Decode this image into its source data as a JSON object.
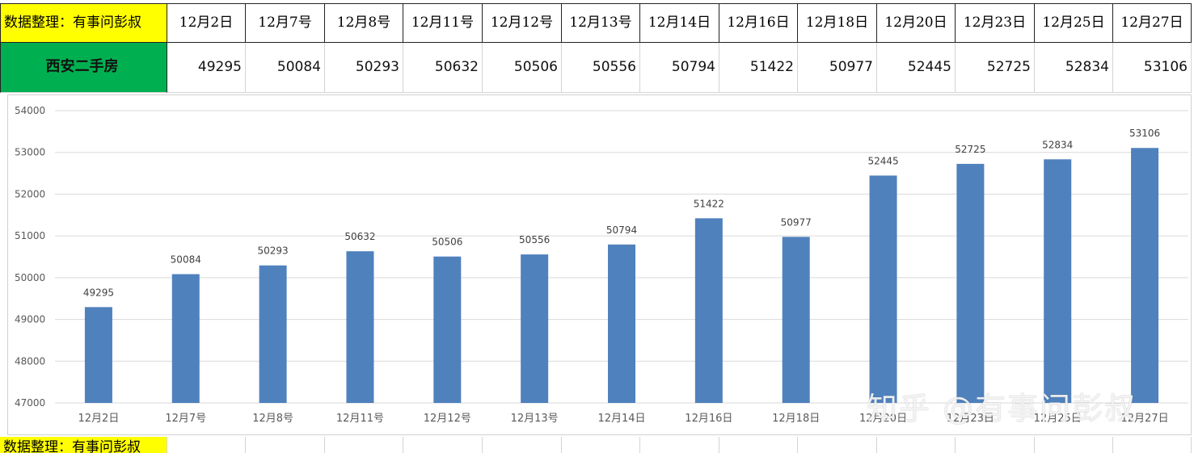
{
  "sheet": {
    "source_label": "数据整理：有事问彭叔",
    "row_label": "西安二手房",
    "footer_label": "数据整理：有事问彭叔",
    "dates": [
      "12月2日",
      "12月7号",
      "12月8号",
      "12月11号",
      "12月12号",
      "12月13号",
      "12月14日",
      "12月16日",
      "12月18日",
      "12月20日",
      "12月23日",
      "12月25日",
      "12月27日"
    ],
    "values": [
      "49295",
      "50084",
      "50293",
      "50632",
      "50506",
      "50556",
      "50794",
      "51422",
      "50977",
      "52445",
      "52725",
      "52834",
      "53106"
    ]
  },
  "chart_data": {
    "type": "bar",
    "categories": [
      "12月2日",
      "12月7号",
      "12月8号",
      "12月11号",
      "12月12号",
      "12月13号",
      "12月14日",
      "12月16日",
      "12月18日",
      "12月20日",
      "12月23日",
      "12月25日",
      "12月27日"
    ],
    "values": [
      49295,
      50084,
      50293,
      50632,
      50506,
      50556,
      50794,
      51422,
      50977,
      52445,
      52725,
      52834,
      53106
    ],
    "data_labels": [
      "49295",
      "50084",
      "50293",
      "50632",
      "50506",
      "50556",
      "50794",
      "51422",
      "50977",
      "52445",
      "52725",
      "52834",
      "53106"
    ],
    "y_ticks": [
      "47000",
      "48000",
      "49000",
      "50000",
      "51000",
      "52000",
      "53000",
      "54000"
    ],
    "ylim": [
      47000,
      54000
    ],
    "grid": true,
    "bar_color": "#4f81bd"
  },
  "watermark": "知乎 @有事问彭叔"
}
